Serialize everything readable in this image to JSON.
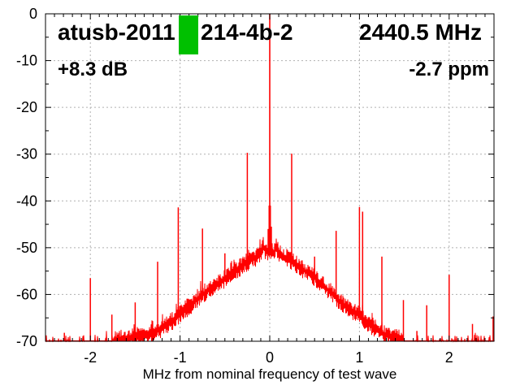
{
  "chart_data": {
    "type": "line",
    "title_parts": {
      "left": "atusb-2011",
      "right": "214-4b-2"
    },
    "censored_segment": {
      "covered": true,
      "color": "#00c000"
    },
    "freq_label": "2440.5 MHz",
    "gain_label": "+8.3 dB",
    "ppm_label": "-2.7 ppm",
    "xlabel": "MHz from nominal frequency of test wave",
    "ylabel": "",
    "xlim": [
      -2.5,
      2.5
    ],
    "ylim": [
      -70,
      0
    ],
    "x_ticks": [
      -2,
      -1,
      0,
      1,
      2
    ],
    "y_ticks": [
      0,
      -10,
      -20,
      -30,
      -40,
      -50,
      -60,
      -70
    ],
    "x_minor_step": 0.1,
    "y_minor_step": 5,
    "grid": true,
    "legend": "none",
    "trace_color": "#ff0000",
    "grid_color": "#b0b0b0",
    "axis_color": "#000000",
    "carrier": {
      "x": 0,
      "peak_db": 0,
      "pedestal_db": -41
    },
    "spurs": [
      [
        -2.29,
        -68.2
      ],
      [
        -2.0,
        -56.5
      ],
      [
        -1.76,
        -64.3
      ],
      [
        -1.5,
        -61.7
      ],
      [
        -1.25,
        -53.0
      ],
      [
        -1.02,
        -41.4
      ],
      [
        -0.75,
        -45.9
      ],
      [
        -0.5,
        -51.2
      ],
      [
        -0.25,
        -29.7
      ],
      [
        0.245,
        -29.9
      ],
      [
        0.5,
        -51.9
      ],
      [
        0.74,
        -46.4
      ],
      [
        1.0,
        -41.3
      ],
      [
        1.035,
        -42.3
      ],
      [
        1.25,
        -51.9
      ],
      [
        1.49,
        -61.2
      ],
      [
        1.64,
        -67.8
      ],
      [
        1.75,
        -62.3
      ],
      [
        2.0,
        -55.8
      ],
      [
        2.26,
        -66.3
      ],
      [
        2.49,
        -64.7
      ]
    ],
    "noise_floor": [
      [
        -2.5,
        -70
      ],
      [
        -1.95,
        -70
      ],
      [
        -1.8,
        -69.7
      ],
      [
        -1.65,
        -69.5
      ],
      [
        -1.5,
        -69.2
      ],
      [
        -1.4,
        -68.9
      ],
      [
        -1.3,
        -68.2
      ],
      [
        -1.2,
        -67.1
      ],
      [
        -1.1,
        -65.9
      ],
      [
        -1.0,
        -64.2
      ],
      [
        -0.9,
        -62.5
      ],
      [
        -0.8,
        -60.8
      ],
      [
        -0.7,
        -59.2
      ],
      [
        -0.6,
        -57.9
      ],
      [
        -0.5,
        -56.7
      ],
      [
        -0.4,
        -55.2
      ],
      [
        -0.35,
        -54.5
      ],
      [
        -0.3,
        -53.8
      ],
      [
        -0.25,
        -53.0
      ],
      [
        -0.2,
        -52.4
      ],
      [
        -0.15,
        -52.0
      ],
      [
        -0.12,
        -51.7
      ],
      [
        -0.09,
        -50.6
      ],
      [
        -0.07,
        -49.6
      ],
      [
        -0.05,
        -50.8
      ],
      [
        -0.03,
        -51.0
      ],
      [
        -0.015,
        -50.6
      ],
      [
        0,
        -50.3
      ],
      [
        0.015,
        -50.5
      ],
      [
        0.03,
        -51.0
      ],
      [
        0.05,
        -50.9
      ],
      [
        0.07,
        -49.8
      ],
      [
        0.09,
        -50.7
      ],
      [
        0.12,
        -51.5
      ],
      [
        0.15,
        -51.9
      ],
      [
        0.2,
        -52.3
      ],
      [
        0.25,
        -52.9
      ],
      [
        0.3,
        -53.7
      ],
      [
        0.4,
        -55.1
      ],
      [
        0.5,
        -56.5
      ],
      [
        0.6,
        -58.1
      ],
      [
        0.7,
        -60.0
      ],
      [
        0.8,
        -61.9
      ],
      [
        0.9,
        -63.2
      ],
      [
        1.0,
        -64.5
      ],
      [
        1.1,
        -66.2
      ],
      [
        1.2,
        -67.7
      ],
      [
        1.3,
        -68.7
      ],
      [
        1.4,
        -69.3
      ],
      [
        1.55,
        -69.8
      ],
      [
        1.7,
        -70
      ],
      [
        2.5,
        -70
      ]
    ]
  }
}
